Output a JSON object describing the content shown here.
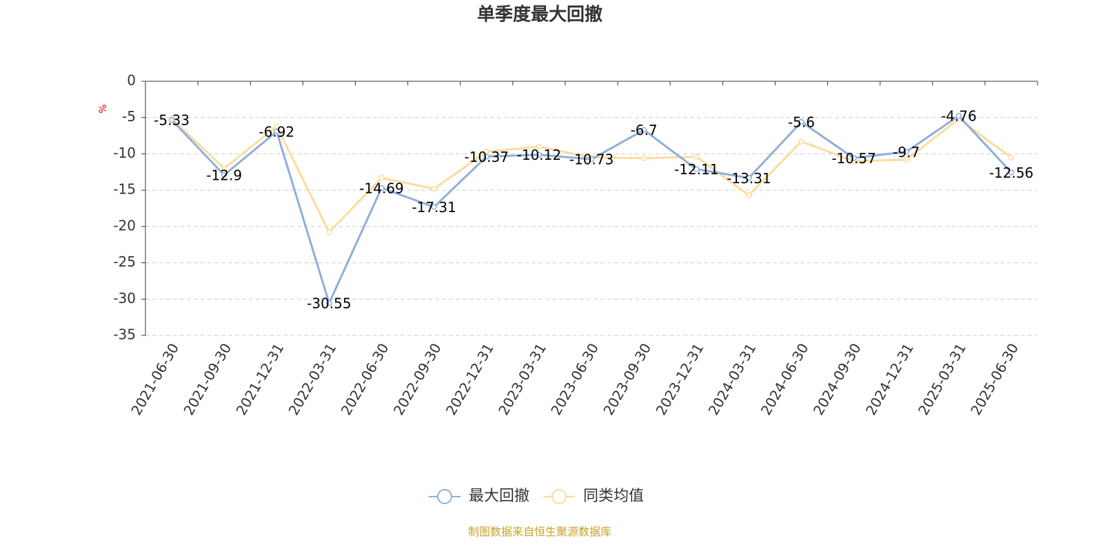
{
  "chart_data": {
    "type": "line",
    "title": "单季度最大回撤",
    "y_label": "%",
    "categories": [
      "2021-06-30",
      "2021-09-30",
      "2021-12-31",
      "2022-03-31",
      "2022-06-30",
      "2022-09-30",
      "2022-12-31",
      "2023-03-31",
      "2023-06-30",
      "2023-09-30",
      "2023-12-31",
      "2024-03-31",
      "2024-06-30",
      "2024-09-30",
      "2024-12-31",
      "2025-03-31",
      "2025-06-30"
    ],
    "series": [
      {
        "name": "最大回撤",
        "color": "#8eaedb",
        "values": [
          -5.33,
          -12.9,
          -6.92,
          -30.55,
          -14.69,
          -17.31,
          -10.37,
          -10.12,
          -10.73,
          -6.7,
          -12.11,
          -13.31,
          -5.6,
          -10.57,
          -9.7,
          -4.76,
          -12.56
        ]
      },
      {
        "name": "同类均值",
        "color": "#fddb9c",
        "values": [
          -5.2,
          -12.0,
          -6.2,
          -20.8,
          -13.3,
          -14.8,
          -9.7,
          -9.0,
          -10.5,
          -10.6,
          -10.4,
          -15.7,
          -8.3,
          -11.0,
          -10.8,
          -5.2,
          -10.5
        ]
      }
    ],
    "ylim": [
      -35,
      0
    ],
    "yticks": [
      0,
      -5,
      -10,
      -15,
      -20,
      -25,
      -30,
      -35
    ],
    "grid": true,
    "source": "制图数据来自恒生聚源数据库"
  }
}
